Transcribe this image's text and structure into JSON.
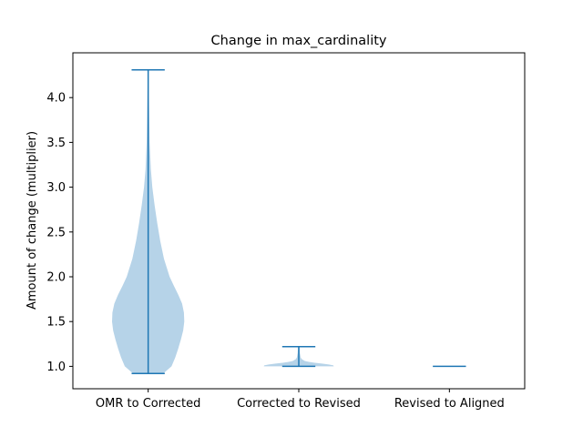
{
  "chart_data": {
    "type": "violin",
    "title": "Change in max_cardinality",
    "xlabel": "",
    "ylabel": "Amount of change (multiplier)",
    "ylim": [
      0.75,
      4.5
    ],
    "yticks": [
      "1.0",
      "1.5",
      "2.0",
      "2.5",
      "3.0",
      "3.5",
      "4.0"
    ],
    "categories": [
      "OMR to Corrected",
      "Corrected to Revised",
      "Revised to Aligned"
    ],
    "violins": [
      {
        "min": 0.92,
        "max": 4.31,
        "density": [
          [
            0.92,
            0.4
          ],
          [
            1.0,
            0.62
          ],
          [
            1.1,
            0.72
          ],
          [
            1.2,
            0.8
          ],
          [
            1.3,
            0.87
          ],
          [
            1.4,
            0.93
          ],
          [
            1.5,
            0.96
          ],
          [
            1.6,
            0.95
          ],
          [
            1.7,
            0.9
          ],
          [
            1.8,
            0.8
          ],
          [
            1.9,
            0.68
          ],
          [
            2.0,
            0.57
          ],
          [
            2.2,
            0.42
          ],
          [
            2.4,
            0.32
          ],
          [
            2.6,
            0.24
          ],
          [
            2.8,
            0.17
          ],
          [
            3.0,
            0.11
          ],
          [
            3.2,
            0.07
          ],
          [
            3.5,
            0.04
          ],
          [
            4.0,
            0.02
          ],
          [
            4.31,
            0.01
          ]
        ]
      },
      {
        "min": 1.0,
        "max": 1.22,
        "density": [
          [
            1.0,
            0.93
          ],
          [
            1.01,
            0.92
          ],
          [
            1.02,
            0.8
          ],
          [
            1.03,
            0.62
          ],
          [
            1.04,
            0.43
          ],
          [
            1.05,
            0.27
          ],
          [
            1.06,
            0.16
          ],
          [
            1.08,
            0.08
          ],
          [
            1.1,
            0.05
          ],
          [
            1.15,
            0.03
          ],
          [
            1.22,
            0.02
          ]
        ]
      },
      {
        "min": 1.0,
        "max": 1.0,
        "density": []
      }
    ],
    "fill_color": "#b6d3e8",
    "line_color": "#1f77b4",
    "grid": false,
    "legend": "none"
  }
}
